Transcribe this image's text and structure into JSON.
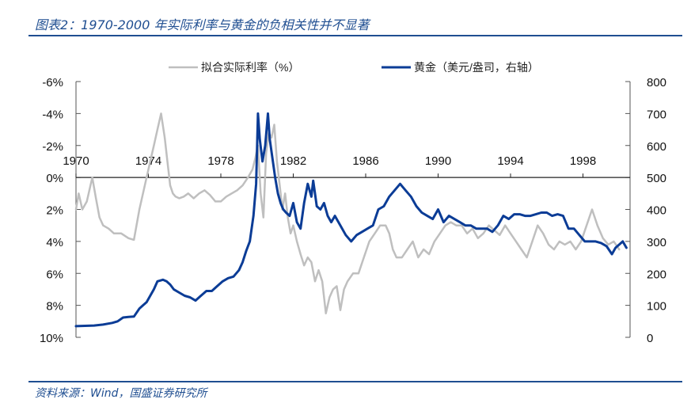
{
  "figure": {
    "title": "图表2：1970-2000 年实际利率与黄金的负相关性并不显著",
    "source": "资料来源：Wind，国盛证券研究所"
  },
  "colors": {
    "accent": "#1f4e91",
    "rate_series": "#bfbfbf",
    "gold_series": "#0b3c96"
  },
  "chart_data": {
    "type": "line",
    "title": "",
    "xlabel": "",
    "ylabel_left": "",
    "ylabel_right": "",
    "legend_position": "top",
    "grid": false,
    "xlim": [
      1970,
      2000.6
    ],
    "x_ticks": [
      1970,
      1974,
      1978,
      1982,
      1986,
      1990,
      1994,
      1998
    ],
    "x_tick_labels": [
      "1970",
      "1974",
      "1978",
      "1982",
      "1986",
      "1990",
      "1994",
      "1998"
    ],
    "left_axis": {
      "reversed": true,
      "range": [
        -6,
        10
      ],
      "ticks": [
        -6,
        -4,
        -2,
        0,
        2,
        4,
        6,
        8,
        10
      ],
      "tick_labels": [
        "-6%",
        "-4%",
        "-2%",
        "0%",
        "2%",
        "4%",
        "6%",
        "8%",
        "10%"
      ]
    },
    "right_axis": {
      "range": [
        0,
        800
      ],
      "ticks": [
        0,
        100,
        200,
        300,
        400,
        500,
        600,
        700,
        800
      ],
      "tick_labels": [
        "0",
        "100",
        "200",
        "300",
        "400",
        "500",
        "600",
        "700",
        "800"
      ]
    },
    "series": [
      {
        "name": "拟合实际利率（%）",
        "axis": "left",
        "x": [
          1970.0,
          1970.15,
          1970.35,
          1970.6,
          1970.9,
          1971.1,
          1971.3,
          1971.5,
          1971.8,
          1972.1,
          1972.5,
          1972.9,
          1973.2,
          1973.5,
          1973.9,
          1974.1,
          1974.3,
          1974.5,
          1974.7,
          1974.9,
          1975.05,
          1975.2,
          1975.35,
          1975.5,
          1975.7,
          1975.95,
          1976.2,
          1976.5,
          1976.8,
          1977.1,
          1977.4,
          1977.7,
          1978.0,
          1978.3,
          1978.6,
          1978.9,
          1979.2,
          1979.5,
          1979.75,
          1979.9,
          1980.05,
          1980.2,
          1980.35,
          1980.5,
          1980.65,
          1980.8,
          1980.95,
          1981.1,
          1981.25,
          1981.4,
          1981.55,
          1981.7,
          1981.85,
          1982.0,
          1982.2,
          1982.4,
          1982.6,
          1982.8,
          1983.0,
          1983.2,
          1983.4,
          1983.6,
          1983.8,
          1984.0,
          1984.2,
          1984.4,
          1984.6,
          1984.8,
          1985.0,
          1985.3,
          1985.6,
          1985.9,
          1986.2,
          1986.5,
          1986.8,
          1987.1,
          1987.3,
          1987.5,
          1987.7,
          1988.0,
          1988.3,
          1988.6,
          1988.9,
          1989.2,
          1989.5,
          1989.8,
          1990.1,
          1990.4,
          1990.7,
          1991.0,
          1991.3,
          1991.6,
          1991.9,
          1992.2,
          1992.5,
          1992.8,
          1993.1,
          1993.4,
          1993.7,
          1994.0,
          1994.3,
          1994.6,
          1994.9,
          1995.2,
          1995.5,
          1995.8,
          1996.1,
          1996.4,
          1996.7,
          1997.0,
          1997.3,
          1997.6,
          1997.9,
          1998.2,
          1998.5,
          1998.8,
          1999.1,
          1999.4,
          1999.7,
          2000.0
        ],
        "values": [
          2.0,
          1.0,
          2.0,
          1.5,
          0.0,
          1.3,
          2.5,
          3.0,
          3.2,
          3.5,
          3.5,
          3.8,
          3.9,
          2.0,
          0.0,
          -1.0,
          -2.0,
          -3.0,
          -4.0,
          -2.5,
          -1.0,
          0.5,
          1.0,
          1.2,
          1.3,
          1.2,
          1.0,
          1.3,
          1.0,
          0.8,
          1.1,
          1.5,
          1.5,
          1.2,
          1.0,
          0.8,
          0.5,
          0.0,
          -0.5,
          -1.2,
          -2.0,
          1.0,
          2.5,
          -1.5,
          -2.8,
          -2.5,
          -3.3,
          -1.0,
          0.5,
          2.0,
          1.0,
          2.5,
          3.5,
          3.0,
          4.0,
          4.8,
          5.5,
          5.0,
          5.3,
          6.5,
          5.8,
          6.5,
          8.5,
          7.5,
          7.0,
          6.8,
          8.3,
          7.0,
          6.5,
          6.0,
          6.0,
          5.0,
          4.0,
          3.5,
          3.0,
          3.0,
          3.5,
          4.5,
          5.0,
          5.0,
          4.5,
          4.0,
          5.0,
          4.5,
          4.8,
          4.0,
          3.5,
          3.0,
          2.8,
          3.0,
          3.0,
          3.5,
          3.2,
          3.8,
          3.5,
          3.0,
          3.3,
          3.6,
          3.0,
          3.5,
          4.0,
          4.5,
          5.0,
          4.0,
          3.0,
          3.5,
          4.2,
          4.5,
          4.0,
          4.2,
          4.0,
          4.5,
          4.0,
          3.0,
          2.0,
          3.0,
          3.8,
          4.2,
          4.0,
          4.5
        ]
      },
      {
        "name": "黄金（美元/盎司，右轴）",
        "axis": "right",
        "x": [
          1970.0,
          1970.5,
          1971.0,
          1971.5,
          1972.0,
          1972.3,
          1972.6,
          1972.9,
          1973.2,
          1973.5,
          1973.7,
          1973.9,
          1974.1,
          1974.3,
          1974.5,
          1974.8,
          1975.0,
          1975.2,
          1975.4,
          1975.7,
          1976.0,
          1976.3,
          1976.6,
          1976.9,
          1977.2,
          1977.5,
          1977.8,
          1978.1,
          1978.4,
          1978.7,
          1979.0,
          1979.2,
          1979.4,
          1979.6,
          1979.8,
          1979.95,
          1980.05,
          1980.15,
          1980.3,
          1980.45,
          1980.6,
          1980.7,
          1980.85,
          1981.0,
          1981.15,
          1981.3,
          1981.45,
          1981.6,
          1981.8,
          1982.0,
          1982.2,
          1982.4,
          1982.6,
          1982.8,
          1983.0,
          1983.1,
          1983.3,
          1983.5,
          1983.7,
          1983.9,
          1984.1,
          1984.3,
          1984.6,
          1984.9,
          1985.2,
          1985.5,
          1985.8,
          1986.1,
          1986.4,
          1986.7,
          1987.0,
          1987.3,
          1987.6,
          1987.9,
          1988.2,
          1988.5,
          1988.8,
          1989.1,
          1989.4,
          1989.7,
          1990.0,
          1990.3,
          1990.6,
          1990.9,
          1991.2,
          1991.5,
          1991.8,
          1992.1,
          1992.4,
          1992.7,
          1993.0,
          1993.3,
          1993.6,
          1993.9,
          1994.2,
          1994.5,
          1994.8,
          1995.1,
          1995.4,
          1995.7,
          1996.0,
          1996.3,
          1996.6,
          1996.9,
          1997.2,
          1997.5,
          1997.8,
          1998.1,
          1998.4,
          1998.7,
          1999.0,
          1999.3,
          1999.6,
          1999.8,
          2000.0,
          2000.2,
          2000.4
        ],
        "values": [
          35,
          36,
          37,
          40,
          45,
          50,
          62,
          64,
          65,
          90,
          100,
          110,
          130,
          150,
          175,
          180,
          175,
          165,
          150,
          140,
          130,
          125,
          115,
          130,
          145,
          145,
          160,
          175,
          185,
          190,
          210,
          235,
          270,
          300,
          380,
          480,
          700,
          620,
          550,
          600,
          700,
          620,
          560,
          500,
          450,
          420,
          400,
          390,
          380,
          420,
          360,
          340,
          420,
          480,
          440,
          490,
          410,
          400,
          420,
          380,
          360,
          380,
          350,
          320,
          300,
          320,
          330,
          340,
          350,
          400,
          410,
          440,
          460,
          480,
          460,
          440,
          410,
          390,
          380,
          370,
          400,
          360,
          380,
          370,
          360,
          350,
          350,
          340,
          340,
          340,
          330,
          350,
          380,
          370,
          385,
          385,
          380,
          380,
          385,
          390,
          390,
          380,
          385,
          380,
          340,
          340,
          320,
          300,
          300,
          300,
          295,
          285,
          260,
          280,
          290,
          300,
          280
        ]
      }
    ]
  }
}
